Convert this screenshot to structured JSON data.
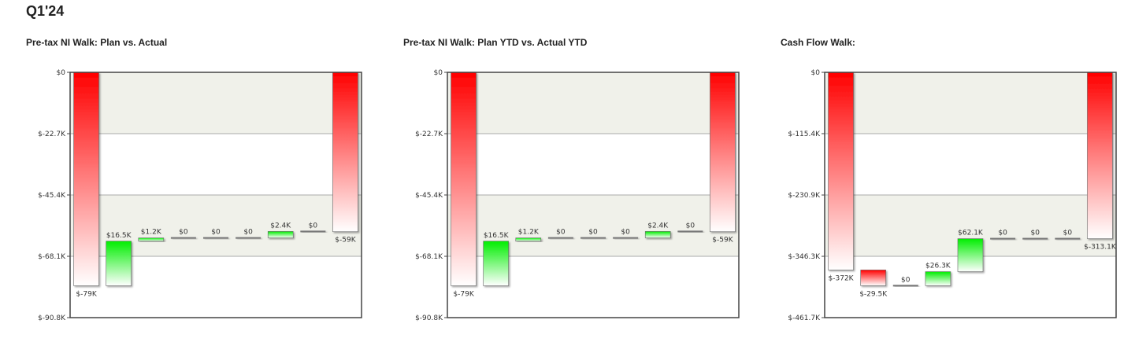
{
  "page": {
    "title": "Q1'24"
  },
  "colors": {
    "negative": "#ff0000",
    "positive": "#00ee00",
    "band": "#f0f1ea",
    "axis": "#444444",
    "gridline": "#aaaaaa"
  },
  "chart_data": [
    {
      "type": "waterfall",
      "title": "Pre-tax NI Walk: Plan vs. Actual",
      "ylim": [
        -90800,
        0
      ],
      "yticks": [
        {
          "value": 0,
          "label": "$0"
        },
        {
          "value": -22700,
          "label": "$-22.7K"
        },
        {
          "value": -45400,
          "label": "$-45.4K"
        },
        {
          "value": -68100,
          "label": "$-68.1K"
        },
        {
          "value": -90800,
          "label": "$-90.8K"
        }
      ],
      "bars": [
        {
          "kind": "total",
          "start": 0,
          "end": -79000,
          "label": "$-79K"
        },
        {
          "kind": "delta",
          "start": -79000,
          "end": -62500,
          "label": "$16.5K"
        },
        {
          "kind": "delta",
          "start": -62500,
          "end": -61300,
          "label": "$1.2K"
        },
        {
          "kind": "delta",
          "start": -61300,
          "end": -61300,
          "label": "$0"
        },
        {
          "kind": "delta",
          "start": -61300,
          "end": -61300,
          "label": "$0"
        },
        {
          "kind": "delta",
          "start": -61300,
          "end": -61300,
          "label": "$0"
        },
        {
          "kind": "delta",
          "start": -61300,
          "end": -58900,
          "label": "$2.4K"
        },
        {
          "kind": "delta",
          "start": -58900,
          "end": -58900,
          "label": "$0"
        },
        {
          "kind": "total",
          "start": 0,
          "end": -59000,
          "label": "$-59K"
        }
      ]
    },
    {
      "type": "waterfall",
      "title": "Pre-tax NI Walk: Plan YTD vs. Actual YTD",
      "ylim": [
        -90800,
        0
      ],
      "yticks": [
        {
          "value": 0,
          "label": "$0"
        },
        {
          "value": -22700,
          "label": "$-22.7K"
        },
        {
          "value": -45400,
          "label": "$-45.4K"
        },
        {
          "value": -68100,
          "label": "$-68.1K"
        },
        {
          "value": -90800,
          "label": "$-90.8K"
        }
      ],
      "bars": [
        {
          "kind": "total",
          "start": 0,
          "end": -79000,
          "label": "$-79K"
        },
        {
          "kind": "delta",
          "start": -79000,
          "end": -62500,
          "label": "$16.5K"
        },
        {
          "kind": "delta",
          "start": -62500,
          "end": -61300,
          "label": "$1.2K"
        },
        {
          "kind": "delta",
          "start": -61300,
          "end": -61300,
          "label": "$0"
        },
        {
          "kind": "delta",
          "start": -61300,
          "end": -61300,
          "label": "$0"
        },
        {
          "kind": "delta",
          "start": -61300,
          "end": -61300,
          "label": "$0"
        },
        {
          "kind": "delta",
          "start": -61300,
          "end": -58900,
          "label": "$2.4K"
        },
        {
          "kind": "delta",
          "start": -58900,
          "end": -58900,
          "label": "$0"
        },
        {
          "kind": "total",
          "start": 0,
          "end": -59000,
          "label": "$-59K"
        }
      ]
    },
    {
      "type": "waterfall",
      "title": "Cash Flow Walk:",
      "ylim": [
        -461700,
        0
      ],
      "yticks": [
        {
          "value": 0,
          "label": "$0"
        },
        {
          "value": -115400,
          "label": "$-115.4K"
        },
        {
          "value": -230900,
          "label": "$-230.9K"
        },
        {
          "value": -346300,
          "label": "$-346.3K"
        },
        {
          "value": -461700,
          "label": "$-461.7K"
        }
      ],
      "bars": [
        {
          "kind": "total",
          "start": 0,
          "end": -372000,
          "label": "$-372K"
        },
        {
          "kind": "delta",
          "start": -372000,
          "end": -401500,
          "label": "$-29.5K"
        },
        {
          "kind": "delta",
          "start": -401500,
          "end": -401500,
          "label": "$0"
        },
        {
          "kind": "delta",
          "start": -401500,
          "end": -375200,
          "label": "$26.3K"
        },
        {
          "kind": "delta",
          "start": -375200,
          "end": -313100,
          "label": "$62.1K"
        },
        {
          "kind": "delta",
          "start": -313100,
          "end": -313100,
          "label": "$0"
        },
        {
          "kind": "delta",
          "start": -313100,
          "end": -313100,
          "label": "$0"
        },
        {
          "kind": "delta",
          "start": -313100,
          "end": -313100,
          "label": "$0"
        },
        {
          "kind": "total",
          "start": 0,
          "end": -313100,
          "label": "$-313.1K"
        }
      ]
    }
  ]
}
